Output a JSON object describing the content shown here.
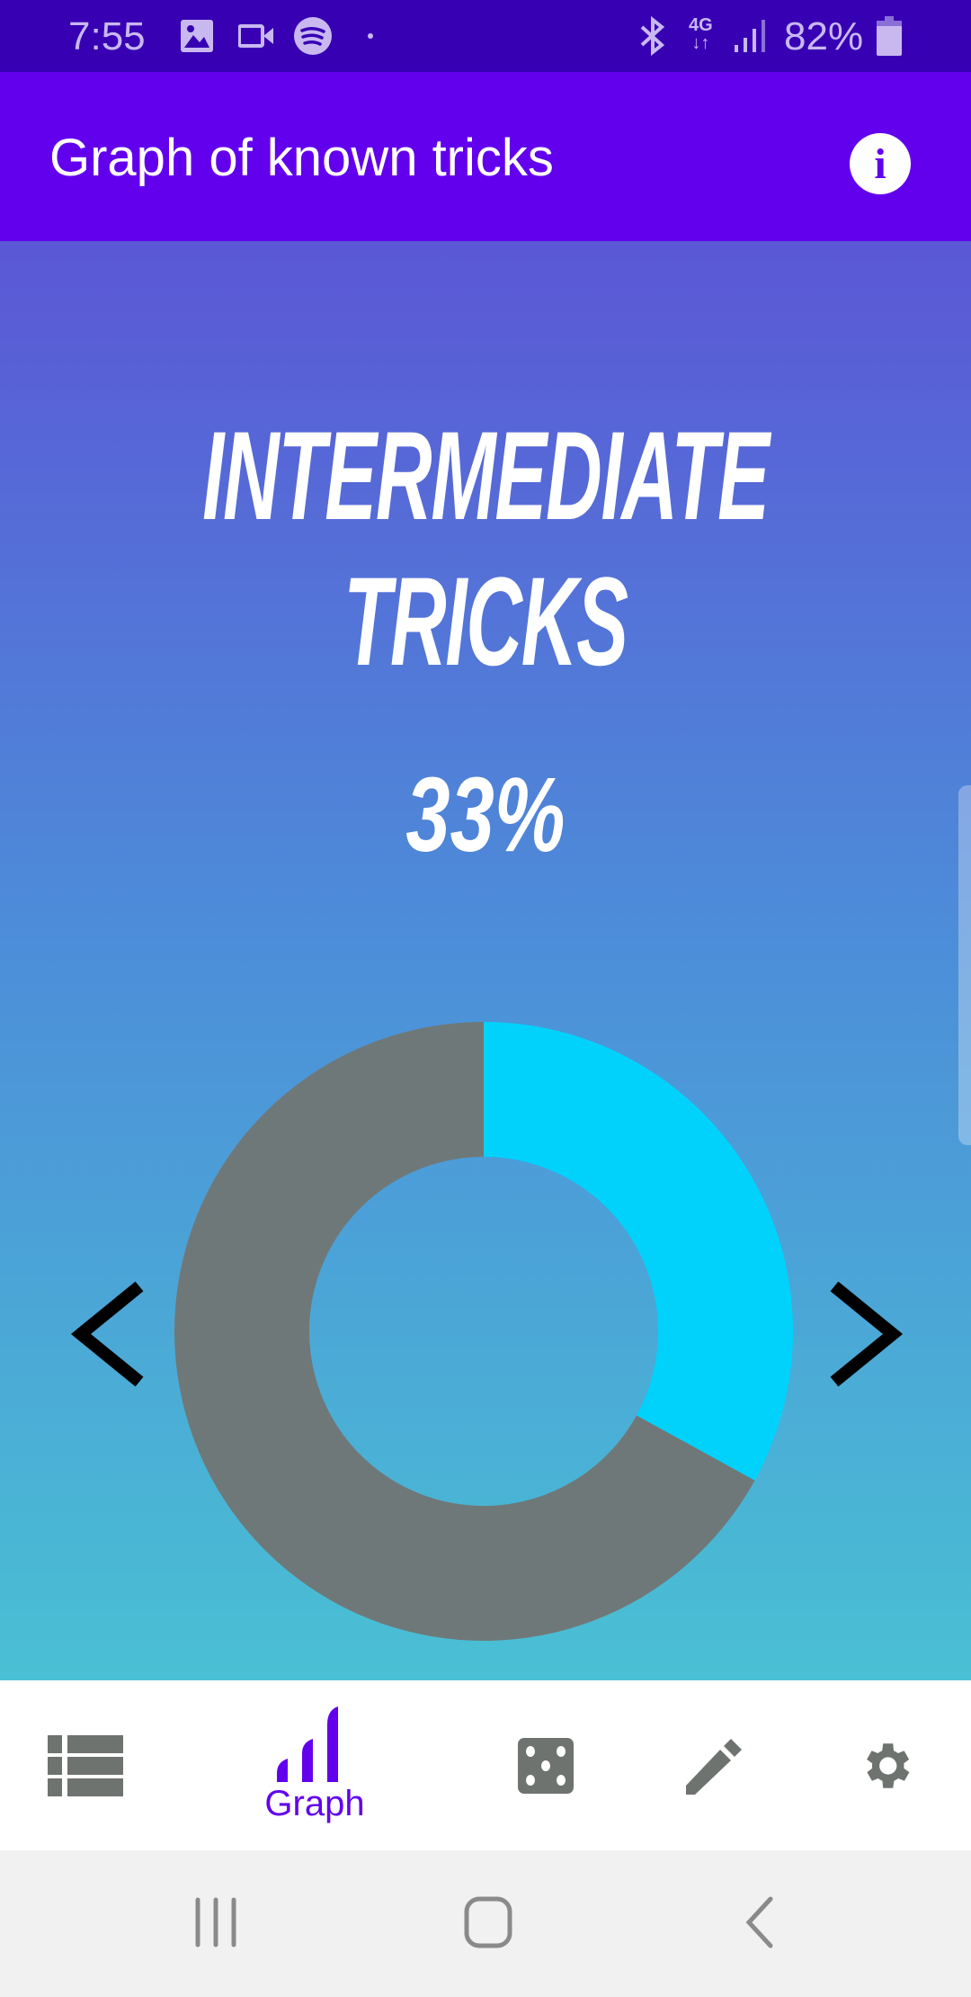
{
  "status_bar": {
    "time": "7:55",
    "battery": "82%",
    "network": "4G",
    "icons": [
      "gallery-icon",
      "video-icon",
      "spotify-icon",
      "dot-icon",
      "bluetooth-icon",
      "4g-icon",
      "signal-icon",
      "battery-icon"
    ]
  },
  "app_bar": {
    "title": "Graph of known tricks",
    "info_icon": "info-icon"
  },
  "main": {
    "category": "Intermediate tricks",
    "percent_label": "33%"
  },
  "chart_data": {
    "type": "pie",
    "variant": "donut",
    "values": [
      33,
      67
    ],
    "colors": [
      "#00d2fc",
      "#6f7878"
    ],
    "start": "top",
    "direction": "clockwise"
  },
  "colors": {
    "primary": "#6200ee",
    "status": "#3700b3",
    "gradient_top": "#5b57d6",
    "gradient_bottom": "#4ac0d4",
    "inactive": "#6f7370"
  },
  "bottom_nav": {
    "items": [
      {
        "icon": "list-icon",
        "label": ""
      },
      {
        "icon": "graph-icon",
        "label": "Graph",
        "active": true
      },
      {
        "icon": "dice-icon",
        "label": ""
      },
      {
        "icon": "pencil-icon",
        "label": ""
      },
      {
        "icon": "gear-icon",
        "label": ""
      }
    ]
  }
}
